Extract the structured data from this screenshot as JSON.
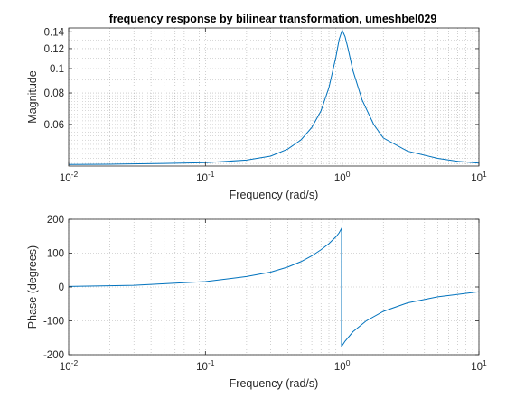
{
  "colors": {
    "line": "#0072BD",
    "axis": "#262626",
    "grid": "#b0b0b0",
    "background": "#ffffff"
  },
  "chart_data": [
    {
      "type": "line",
      "title": "frequency response by bilinear transformation, umeshbel029",
      "xlabel": "Frequency (rad/s)",
      "ylabel": "Magnitude",
      "x_scale": "log",
      "y_scale": "log",
      "xlim": [
        0.01,
        10
      ],
      "ylim": [
        0.041,
        0.145
      ],
      "grid": true,
      "x_ticks": [
        {
          "value": 0.01,
          "base": "10",
          "exp": "-2"
        },
        {
          "value": 0.1,
          "base": "10",
          "exp": "-1"
        },
        {
          "value": 1,
          "base": "10",
          "exp": "0"
        },
        {
          "value": 10,
          "base": "10",
          "exp": "1"
        }
      ],
      "y_ticks": [
        {
          "value": 0.06,
          "label": "0.06"
        },
        {
          "value": 0.08,
          "label": "0.08"
        },
        {
          "value": 0.1,
          "label": "0.1"
        },
        {
          "value": 0.12,
          "label": "0.12"
        },
        {
          "value": 0.14,
          "label": "0.14"
        }
      ],
      "series": [
        {
          "x": [
            0.01,
            0.02,
            0.05,
            0.1,
            0.2,
            0.3,
            0.4,
            0.5,
            0.6,
            0.7,
            0.8,
            0.9,
            0.95,
            1.0,
            1.05,
            1.1,
            1.2,
            1.4,
            1.7,
            2,
            3,
            5,
            7,
            10
          ],
          "y": [
            0.0416,
            0.0417,
            0.042,
            0.0423,
            0.0433,
            0.0449,
            0.0479,
            0.0521,
            0.0584,
            0.0679,
            0.084,
            0.1111,
            0.1304,
            0.142,
            0.134,
            0.121,
            0.098,
            0.075,
            0.06,
            0.053,
            0.047,
            0.044,
            0.0428,
            0.0421
          ]
        }
      ]
    },
    {
      "type": "line",
      "xlabel": "Frequency (rad/s)",
      "ylabel": "Phase (degrees)",
      "x_scale": "log",
      "xlim": [
        0.01,
        10
      ],
      "ylim": [
        -200,
        200
      ],
      "grid": true,
      "x_ticks": [
        {
          "value": 0.01,
          "base": "10",
          "exp": "-2"
        },
        {
          "value": 0.1,
          "base": "10",
          "exp": "-1"
        },
        {
          "value": 1,
          "base": "10",
          "exp": "0"
        },
        {
          "value": 10,
          "base": "10",
          "exp": "1"
        }
      ],
      "y_ticks": [
        {
          "value": -200,
          "label": "-200"
        },
        {
          "value": -100,
          "label": "-100"
        },
        {
          "value": 0,
          "label": "0"
        },
        {
          "value": 100,
          "label": "100"
        },
        {
          "value": 200,
          "label": "200"
        }
      ],
      "series": [
        {
          "x": [
            0.01,
            0.03,
            0.1,
            0.2,
            0.3,
            0.4,
            0.5,
            0.6,
            0.7,
            0.8,
            0.9,
            0.95,
            0.99,
            0.99,
            1.0,
            1.05,
            1.2,
            1.5,
            2,
            3,
            5,
            10
          ],
          "y": [
            1.7,
            5,
            16,
            31,
            44,
            59,
            75,
            92,
            110,
            128,
            148,
            160,
            173,
            -175,
            -173,
            -160,
            -132,
            -100,
            -72,
            -47,
            -29,
            -14
          ]
        }
      ]
    }
  ]
}
